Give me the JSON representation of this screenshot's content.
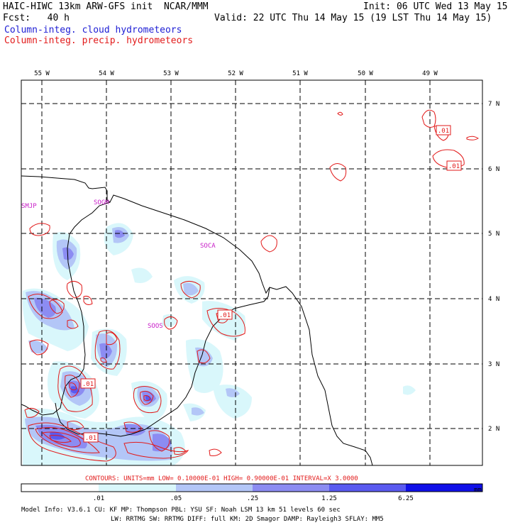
{
  "header": {
    "title": "HAIC-HIWC 13km ARW-GFS init  NCAR/MMM",
    "init": "Init: 06 UTC Wed 13 May 15",
    "fcst": "Fcst:   40 h",
    "valid": "Valid: 22 UTC Thu 14 May 15 (19 LST Thu 14 May 15)",
    "field1": "Column-integ. cloud hydrometeors",
    "field2": "Column-integ. precip. hydrometeors"
  },
  "colors": {
    "field1": "#1d1dd4",
    "field2": "#e21a1a",
    "contour": "#e21a1a",
    "station": "#c81ec8",
    "shade": [
      "#ffffff",
      "#d9f7fb",
      "#b3c6f7",
      "#8c8cf2",
      "#5a5af0",
      "#1010e8"
    ]
  },
  "map": {
    "lon_labels": [
      "55 W",
      "54 W",
      "53 W",
      "52 W",
      "51 W",
      "50 W",
      "49 W"
    ],
    "lat_labels": [
      "7 N",
      "6 N",
      "5 N",
      "4 N",
      "3 N",
      "2 N"
    ],
    "stations": [
      "SMJP",
      "SOGM",
      "SOCA",
      "SOOS"
    ],
    "contour_labels": [
      ".01",
      ".01",
      ".01",
      ".01",
      ".01"
    ]
  },
  "contours_note": "CONTOURS:  UNITS=mm  LOW= 0.10000E-01  HIGH= 0.90000E-01  INTERVAL=X  3.0000",
  "colorbar": {
    "ticks": [
      ".01",
      ".05",
      ".25",
      "1.25",
      "6.25"
    ],
    "units": "mm"
  },
  "model_info": {
    "line1": "Model Info: V3.6.1    CU: KF     MP: Thompson    PBL: YSU     SF: Noah LSM     13 km   51 levels   60 sec",
    "line2": "LW: RRTMG    SW: RRTMG   DIFF: full    KM: 2D Smagor DAMP: Rayleigh3  SFLAY: MM5"
  }
}
